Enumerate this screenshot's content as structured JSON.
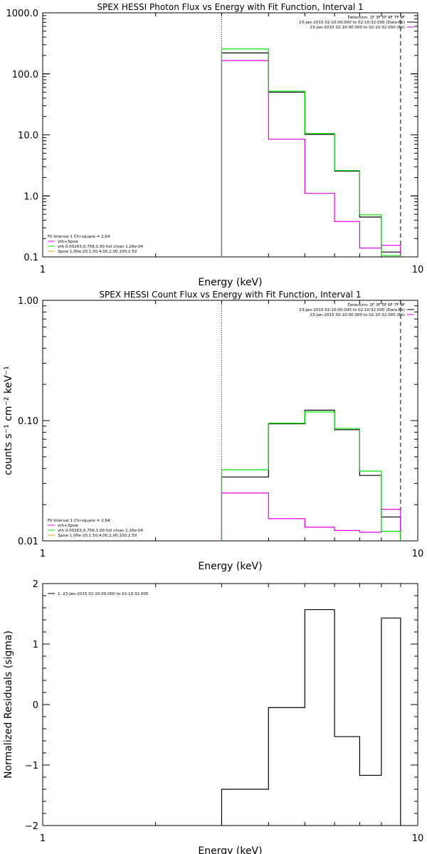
{
  "chart_data": [
    {
      "type": "line",
      "title": "SPEX HESSI Photon Flux vs Energy with Fit Function, Interval 1",
      "xlabel": "Energy (keV)",
      "ylabel": "",
      "xscale": "log",
      "yscale": "log",
      "xlim": [
        1,
        10
      ],
      "ylim": [
        0.1,
        1000
      ],
      "xticks": [
        "1",
        "10"
      ],
      "yticks": [
        "0.1",
        "1.0",
        "10.0",
        "100.0",
        "1000.0"
      ],
      "step_edges": [
        3,
        4,
        5,
        6,
        7,
        8,
        9
      ],
      "series": [
        {
          "values": [
            220,
            50,
            10.2,
            2.55,
            0.45,
            0.12
          ],
          "color": "#000000"
        },
        {
          "values": [
            165,
            8.5,
            1.1,
            0.38,
            0.14,
            0.155
          ],
          "color": "#e000e0"
        },
        {
          "values": [
            255,
            52,
            10.5,
            2.6,
            0.49,
            0.105
          ],
          "color": "#00e000"
        }
      ],
      "vlines": [
        {
          "x": 3,
          "style": "dotted"
        },
        {
          "x": 9,
          "style": "dashed"
        }
      ],
      "legend_right": [
        {
          "text": "Detectors: 1F 3F 5F 6F 7F 9F",
          "color": ""
        },
        {
          "text": "23-Jan-2015 02:10:00.000 to 02:10:32.000 (Data-Bk)",
          "color": "#000000"
        },
        {
          "text": "23-Jan-2015 02:10:00.000 to 02:10:32.000 (Bk)",
          "color": "#e000e0"
        }
      ],
      "legend_left": [
        {
          "text": "Fit Interval 1    Chi-square = 2.64",
          "color": ""
        },
        {
          "text": "vth+3pow",
          "color": "#e000e0"
        },
        {
          "text": "vth 0.00163,0.756,1.00   full chian 1.26e-04",
          "color": "#00e000"
        },
        {
          "text": "3pow 1.00e-20,1.50,4.00,2.00,100,2.50",
          "color": "#e0a000"
        }
      ]
    },
    {
      "type": "line",
      "title": "SPEX HESSI Count Flux vs Energy with Fit Function, Interval 1",
      "xlabel": "Energy (keV)",
      "ylabel": "counts s⁻¹ cm⁻² keV⁻¹",
      "xscale": "log",
      "yscale": "log",
      "xlim": [
        1,
        10
      ],
      "ylim": [
        0.01,
        1
      ],
      "xticks": [
        "1",
        "10"
      ],
      "yticks": [
        "0.01",
        "0.10",
        "1.00"
      ],
      "step_edges": [
        3,
        4,
        5,
        6,
        7,
        8,
        9
      ],
      "series": [
        {
          "values": [
            0.034,
            0.094,
            0.122,
            0.084,
            0.035,
            0.0158
          ],
          "color": "#000000"
        },
        {
          "values": [
            0.025,
            0.0153,
            0.013,
            0.0122,
            0.0118,
            0.0183
          ],
          "color": "#e000e0"
        },
        {
          "values": [
            0.039,
            0.095,
            0.118,
            0.086,
            0.038,
            0.012
          ],
          "color": "#00e000"
        }
      ],
      "vlines": [
        {
          "x": 3,
          "style": "dotted"
        },
        {
          "x": 9,
          "style": "dashed"
        }
      ],
      "legend_right": [
        {
          "text": "Detectors: 1F 3F 5F 6F 7F 9F",
          "color": ""
        },
        {
          "text": "23-Jan-2015 02:10:00.000 to 02:10:32.000 (Data-Bk)",
          "color": "#000000"
        },
        {
          "text": "23-Jan-2015 02:10:00.000 to 02:10:32.000 (Bk)",
          "color": "#e000e0"
        }
      ],
      "legend_left": [
        {
          "text": "Fit Interval 1    Chi-square = 2.64",
          "color": ""
        },
        {
          "text": "vth+3pow",
          "color": "#e000e0"
        },
        {
          "text": "vth 0.00163,0.756,1.00   full chian 1.26e-04",
          "color": "#00e000"
        },
        {
          "text": "3pow 1.00e-20,1.50,4.00,2.00,100,2.50",
          "color": "#e0a000"
        }
      ]
    },
    {
      "type": "line",
      "title": "",
      "xlabel": "Energy (keV)",
      "ylabel": "Normalized Residuals (sigma)",
      "xscale": "log",
      "yscale": "linear",
      "xlim": [
        1,
        10
      ],
      "ylim": [
        -2,
        2
      ],
      "xticks": [
        "1",
        "10"
      ],
      "yticks": [
        "−2",
        "−1",
        "0",
        "1",
        "2"
      ],
      "step_edges": [
        3,
        4,
        5,
        6,
        7,
        8,
        9
      ],
      "series": [
        {
          "values": [
            -1.4,
            -0.05,
            1.57,
            -0.53,
            -1.17,
            1.43
          ],
          "color": "#000000"
        }
      ],
      "vlines": [],
      "legend_right": [],
      "legend_left": [
        {
          "text": "1. 23-Jan-2015 02:10:00.000 to 02:10:32.000",
          "color": "#000000"
        }
      ]
    }
  ]
}
